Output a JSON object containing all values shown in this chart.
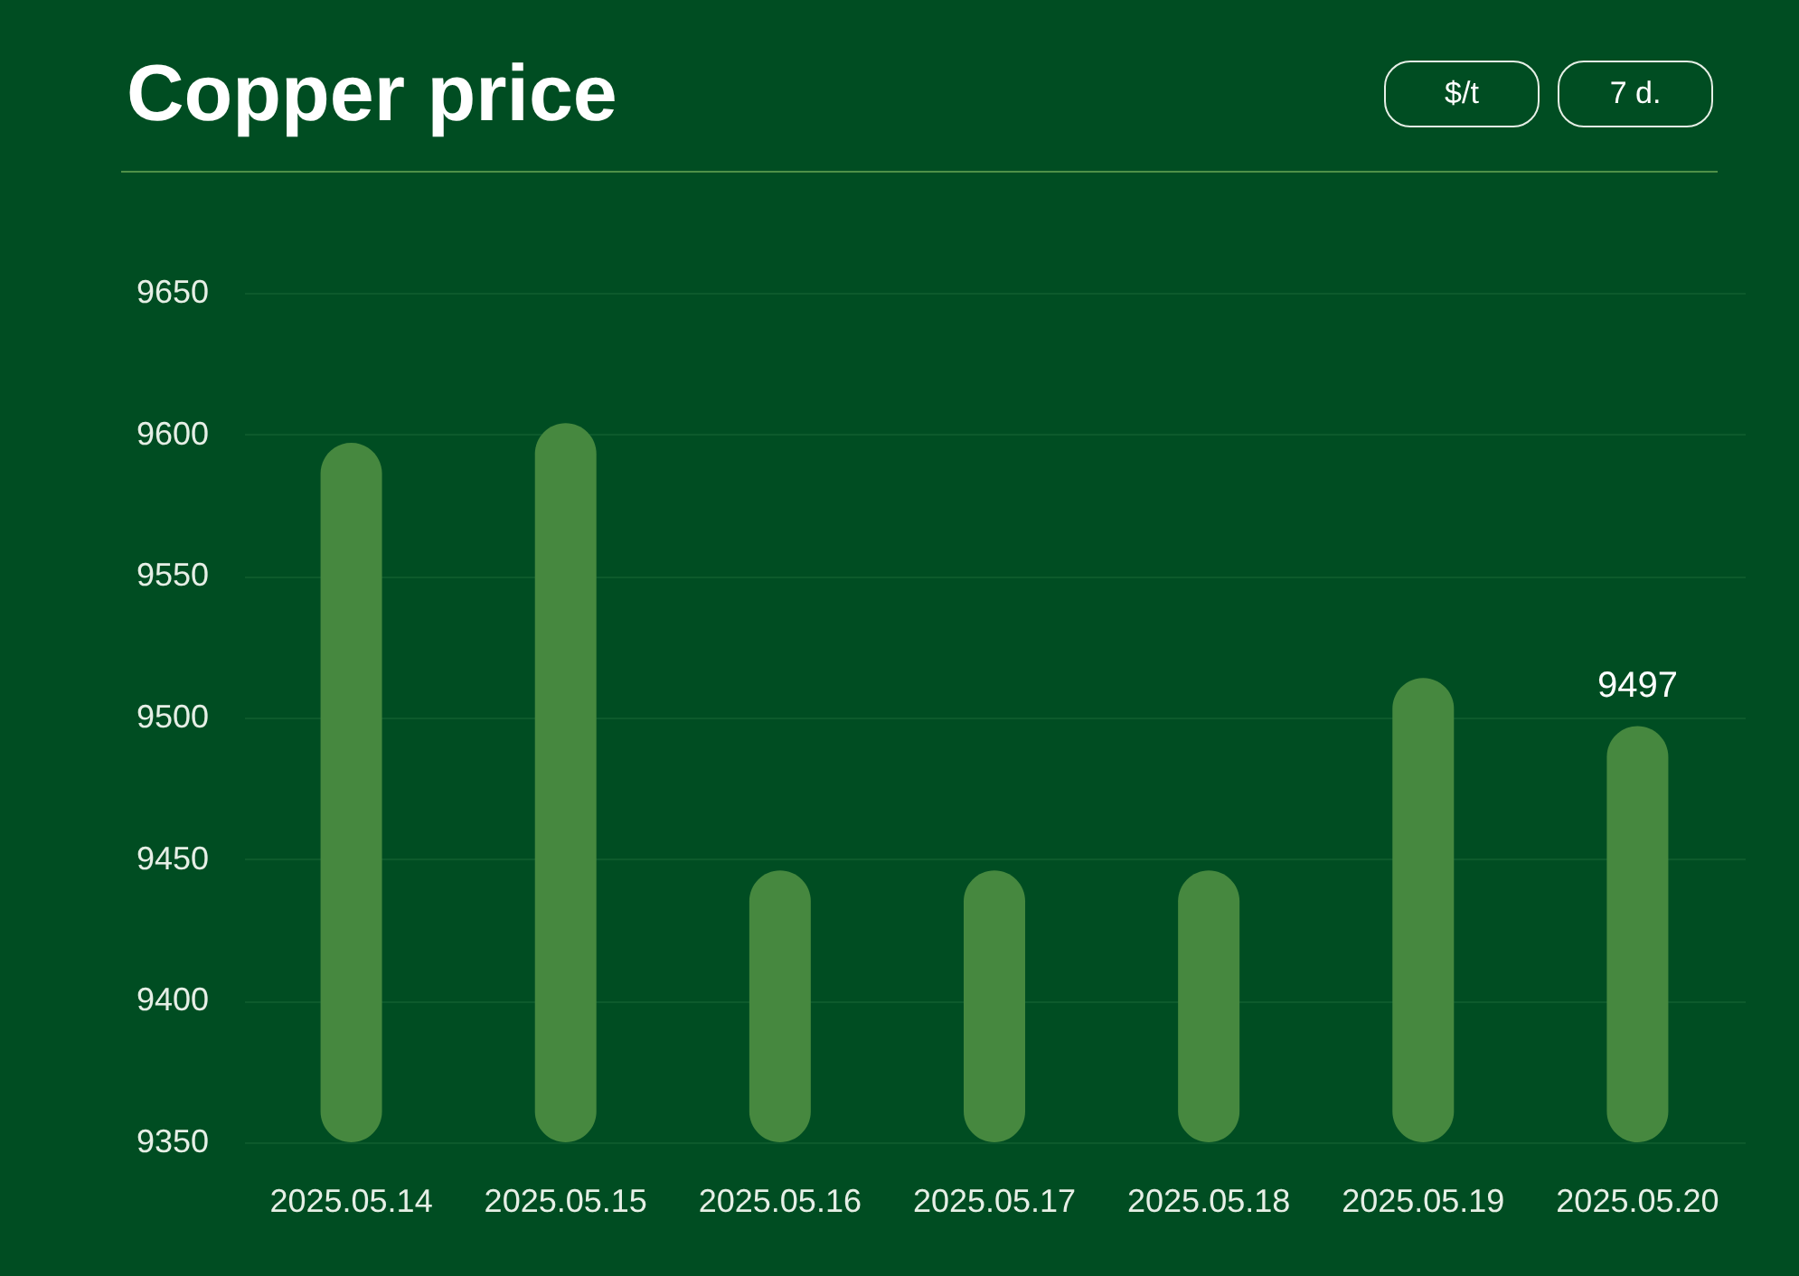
{
  "chart_data": {
    "type": "bar",
    "title": "Copper price",
    "annotations": [
      "$/t",
      "7 d."
    ],
    "categories": [
      "2025.05.14",
      "2025.05.15",
      "2025.05.16",
      "2025.05.17",
      "2025.05.18",
      "2025.05.19",
      "2025.05.20"
    ],
    "values": [
      9597,
      9604,
      9446,
      9446,
      9446,
      9514,
      9497
    ],
    "value_labels": [
      null,
      null,
      null,
      null,
      null,
      null,
      "9497"
    ],
    "color": "#46883f",
    "ylim": [
      9350,
      9650
    ],
    "yticks": [
      9350,
      9400,
      9450,
      9500,
      9550,
      9600,
      9650
    ],
    "grid": "y"
  }
}
